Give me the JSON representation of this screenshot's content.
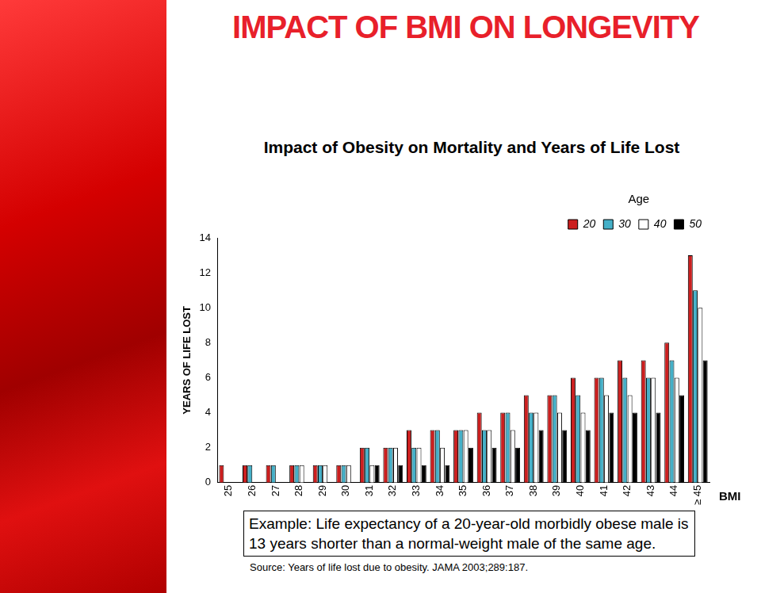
{
  "chart_data": {
    "type": "bar",
    "title": "IMPACT OF BMI ON LONGEVITY",
    "subtitle": "Impact of Obesity on Mortality and Years of Life Lost",
    "legend_title": "Age",
    "x_label": "BMI",
    "y_label": "YEARS OF LIFE LOST",
    "annotations": [
      "Example: Life expectancy of a 20-year-old morbidly obese male is 13 years shorter than a normal-weight male of the same age.",
      "Source: Years of life lost due to obesity. JAMA 2003;289:187."
    ],
    "categories": [
      "25",
      "26",
      "27",
      "28",
      "29",
      "30",
      "31",
      "32",
      "33",
      "34",
      "35",
      "36",
      "37",
      "38",
      "39",
      "40",
      "41",
      "42",
      "43",
      "44",
      "≥ 45"
    ],
    "series": [
      {
        "name": "20",
        "color": "#cc1f1f",
        "values": [
          1,
          1,
          1,
          1,
          1,
          1,
          2,
          2,
          3,
          3,
          3,
          4,
          4,
          5,
          5,
          6,
          6,
          7,
          7,
          8,
          13
        ]
      },
      {
        "name": "30",
        "color": "#45b0c8",
        "values": [
          0,
          1,
          1,
          1,
          1,
          1,
          2,
          2,
          2,
          3,
          3,
          3,
          4,
          4,
          5,
          5,
          6,
          6,
          6,
          7,
          11
        ]
      },
      {
        "name": "40",
        "color": "#ffffff",
        "values": [
          0,
          0,
          0,
          1,
          1,
          1,
          1,
          2,
          2,
          2,
          3,
          3,
          3,
          4,
          4,
          4,
          5,
          5,
          6,
          6,
          10
        ]
      },
      {
        "name": "50",
        "color": "#000000",
        "values": [
          0,
          0,
          0,
          0,
          0,
          0,
          1,
          1,
          1,
          1,
          2,
          2,
          2,
          3,
          3,
          3,
          4,
          4,
          4,
          5,
          7
        ]
      }
    ],
    "ylim": [
      0,
      14
    ],
    "yticks": [
      0,
      2,
      4,
      6,
      8,
      10,
      12,
      14
    ],
    "grid": false,
    "legend": "top right",
    "stacked": false,
    "data_labels": false
  }
}
